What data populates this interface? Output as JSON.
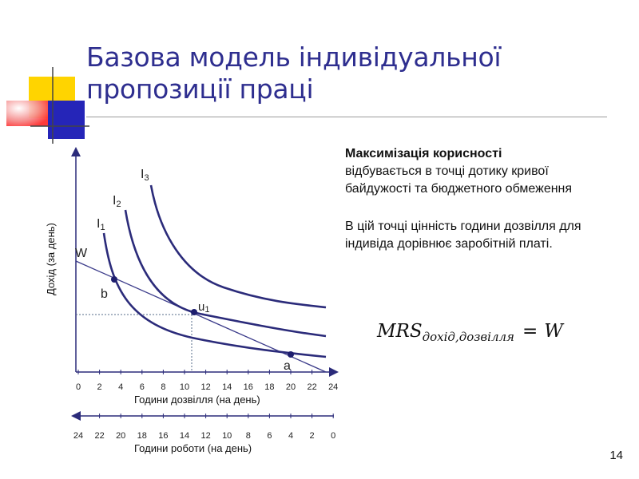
{
  "slide": {
    "title_line1": "Базова модель індивідуальної",
    "title_line2": "пропозиції праці",
    "page_number": "14"
  },
  "text": {
    "bold_heading": "Максимізація корисності",
    "para1_rest": "відбувається в точці дотику кривої байдужості та бюджетного обмеження",
    "para2": "В цій точці цінність години дозвілля для індивіда дорівнює заробітній платі."
  },
  "formula": {
    "lhs": "MRS",
    "subscript": "дохід,дозвілля",
    "eq": "=",
    "rhs": "W"
  },
  "diagram": {
    "y_axis_label": "Дохід (за день)",
    "x_axis_label": "Години дозвілля (на день)",
    "x2_axis_label": "Години роботи (на день)",
    "x_ticks": [
      "0",
      "2",
      "4",
      "6",
      "8",
      "10",
      "12",
      "14",
      "16",
      "18",
      "20",
      "22",
      "24"
    ],
    "x2_ticks": [
      "24",
      "22",
      "20",
      "18",
      "16",
      "14",
      "12",
      "10",
      "8",
      "6",
      "4",
      "2",
      "0"
    ],
    "curve_labels": {
      "I1": "I",
      "I1_sub": "1",
      "I2": "I",
      "I2_sub": "2",
      "I3": "I",
      "I3_sub": "3"
    },
    "budget_label": "W",
    "points": {
      "b": "b",
      "u1": "u",
      "u1_sub": "1",
      "a": "a"
    },
    "colors": {
      "curve": "#2b2b7a",
      "axis": "#2b2b7a",
      "dashed": "#556b8a"
    }
  }
}
